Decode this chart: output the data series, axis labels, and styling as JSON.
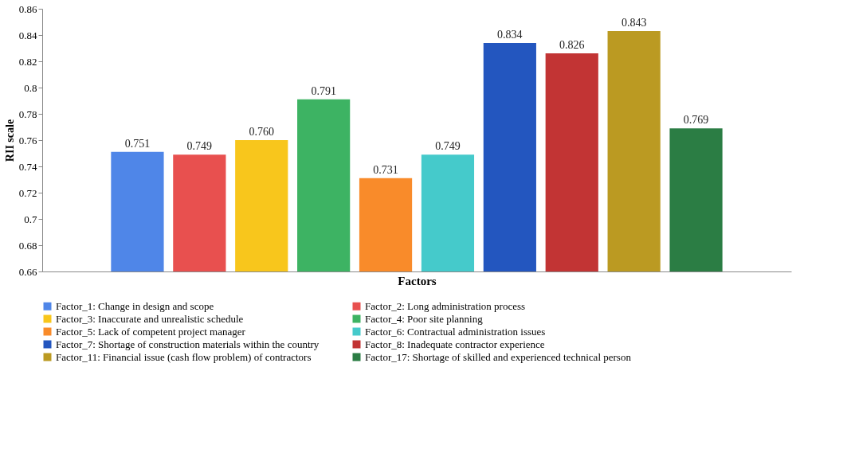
{
  "chart_data": {
    "type": "bar",
    "xlabel": "Factors",
    "ylabel": "RII scale",
    "categories": [
      null
    ],
    "ylim": [
      0.66,
      0.86
    ],
    "yticks": [
      0.66,
      0.68,
      0.7,
      0.72,
      0.74,
      0.76,
      0.78,
      0.8,
      0.82,
      0.84,
      0.86
    ],
    "legend": "bottom",
    "grid": false,
    "series": [
      {
        "name": "Factor_1: Change in design and scope",
        "color": "#4f86e8",
        "values": [
          0.751
        ],
        "value_labels": [
          "0.751"
        ]
      },
      {
        "name": "Factor_2: Long administration process",
        "color": "#e8504f",
        "values": [
          0.749
        ],
        "value_labels": [
          "0.749"
        ]
      },
      {
        "name": "Factor_3: Inaccurate and unrealistic schedule",
        "color": "#f8c61c",
        "values": [
          0.76
        ],
        "value_labels": [
          "0.760"
        ]
      },
      {
        "name": "Factor_4: Poor site planning",
        "color": "#3db363",
        "values": [
          0.791
        ],
        "value_labels": [
          "0.791"
        ]
      },
      {
        "name": "Factor_5: Lack of competent project manager",
        "color": "#f98b2a",
        "values": [
          0.731
        ],
        "value_labels": [
          "0.731"
        ]
      },
      {
        "name": "Factor_6: Contractual administration issues",
        "color": "#45cacb",
        "values": [
          0.749
        ],
        "value_labels": [
          "0.749"
        ]
      },
      {
        "name": "Factor_7: Shortage of construction materials within the country",
        "color": "#2356bf",
        "values": [
          0.834
        ],
        "value_labels": [
          "0.834"
        ]
      },
      {
        "name": "Factor_8: Inadequate contractor experience",
        "color": "#c23434",
        "values": [
          0.826
        ],
        "value_labels": [
          "0.826"
        ]
      },
      {
        "name": "Factor_11: Financial issue (cash flow problem) of contractors",
        "color": "#bb9a22",
        "values": [
          0.843
        ],
        "value_labels": [
          "0.843"
        ]
      },
      {
        "name": "Factor_17: Shortage of skilled and experienced technical person",
        "color": "#2b7d44",
        "values": [
          0.769
        ],
        "value_labels": [
          "0.769"
        ]
      }
    ]
  }
}
